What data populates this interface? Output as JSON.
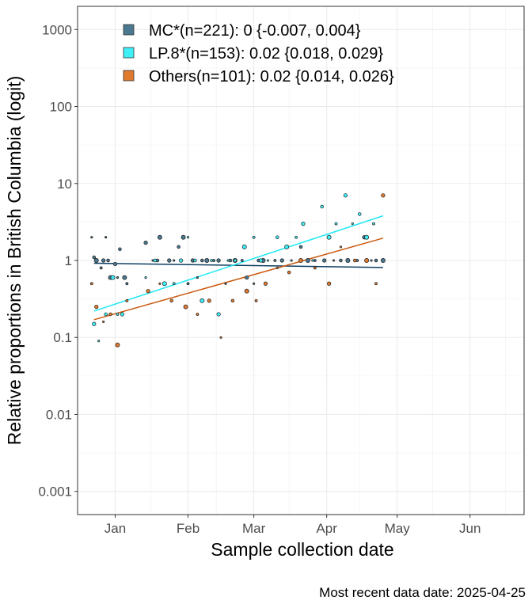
{
  "chart_data": {
    "type": "scatter",
    "title": "",
    "ylabel": "Relative proportions in British Columbia (logit)",
    "xlabel": "Sample collection date",
    "caption": "Most recent data date: 2025-04-25",
    "y_scale": "log",
    "ylim": [
      0.0005,
      2000
    ],
    "xlim": [
      "2024-12-16",
      "2025-06-24"
    ],
    "y_ticks": [
      {
        "value": 0.001,
        "label": "0.001"
      },
      {
        "value": 0.01,
        "label": "0.01"
      },
      {
        "value": 0.1,
        "label": "0.1"
      },
      {
        "value": 1,
        "label": "1"
      },
      {
        "value": 10,
        "label": "10"
      },
      {
        "value": 100,
        "label": "100"
      },
      {
        "value": 1000,
        "label": "1000"
      }
    ],
    "x_ticks": [
      {
        "date": "2025-01-01",
        "label": "Jan"
      },
      {
        "date": "2025-02-01",
        "label": "Feb"
      },
      {
        "date": "2025-03-01",
        "label": "Mar"
      },
      {
        "date": "2025-04-01",
        "label": "Apr"
      },
      {
        "date": "2025-05-01",
        "label": "May"
      },
      {
        "date": "2025-06-01",
        "label": "Jun"
      }
    ],
    "grid": true,
    "legend_position": "top-left inside",
    "series": [
      {
        "name": "MC*(n=221): 0 {-0.007, 0.004}",
        "color": "#4a7890",
        "line_color": "#0d3e62",
        "trend": [
          {
            "x": "2024-12-23",
            "y": 0.92
          },
          {
            "x": "2025-04-25",
            "y": 0.81
          }
        ],
        "points": [
          {
            "x": "2024-12-22",
            "y": 2.0
          },
          {
            "x": "2024-12-23",
            "y": 1.1
          },
          {
            "x": "2024-12-24",
            "y": 1.0
          },
          {
            "x": "2024-12-26",
            "y": 0.8
          },
          {
            "x": "2024-12-27",
            "y": 1.0
          },
          {
            "x": "2024-12-28",
            "y": 2.0
          },
          {
            "x": "2024-12-29",
            "y": 1.0
          },
          {
            "x": "2024-12-30",
            "y": 0.6
          },
          {
            "x": "2024-12-31",
            "y": 0.6
          },
          {
            "x": "2025-01-01",
            "y": 0.9
          },
          {
            "x": "2025-01-02",
            "y": 0.6
          },
          {
            "x": "2025-01-03",
            "y": 1.4
          },
          {
            "x": "2025-01-05",
            "y": 0.6
          },
          {
            "x": "2025-01-06",
            "y": 0.5
          },
          {
            "x": "2025-01-14",
            "y": 1.7
          },
          {
            "x": "2025-01-17",
            "y": 1.0
          },
          {
            "x": "2025-01-19",
            "y": 1.0
          },
          {
            "x": "2025-01-20",
            "y": 2.0
          },
          {
            "x": "2025-01-22",
            "y": 0.5
          },
          {
            "x": "2025-01-24",
            "y": 1.0
          },
          {
            "x": "2025-01-26",
            "y": 1.0
          },
          {
            "x": "2025-01-28",
            "y": 1.5
          },
          {
            "x": "2025-01-30",
            "y": 2.0
          },
          {
            "x": "2025-02-01",
            "y": 0.5
          },
          {
            "x": "2025-02-03",
            "y": 1.0
          },
          {
            "x": "2025-02-05",
            "y": 0.6
          },
          {
            "x": "2025-02-07",
            "y": 1.0
          },
          {
            "x": "2025-02-09",
            "y": 1.0
          },
          {
            "x": "2025-02-12",
            "y": 1.0
          },
          {
            "x": "2025-02-14",
            "y": 1.0
          },
          {
            "x": "2025-02-17",
            "y": 0.5
          },
          {
            "x": "2025-02-19",
            "y": 1.0
          },
          {
            "x": "2025-02-21",
            "y": 1.0
          },
          {
            "x": "2025-02-24",
            "y": 1.0
          },
          {
            "x": "2025-02-26",
            "y": 0.6
          },
          {
            "x": "2025-03-01",
            "y": 0.5
          },
          {
            "x": "2025-03-03",
            "y": 1.0
          },
          {
            "x": "2025-03-05",
            "y": 1.0
          },
          {
            "x": "2025-03-10",
            "y": 1.0
          },
          {
            "x": "2025-03-13",
            "y": 1.0
          },
          {
            "x": "2025-03-17",
            "y": 1.0
          },
          {
            "x": "2025-03-21",
            "y": 1.5
          },
          {
            "x": "2025-03-24",
            "y": 1.0
          },
          {
            "x": "2025-03-27",
            "y": 1.0
          },
          {
            "x": "2025-03-31",
            "y": 1.0
          },
          {
            "x": "2025-04-04",
            "y": 1.0
          },
          {
            "x": "2025-04-07",
            "y": 1.0
          },
          {
            "x": "2025-04-10",
            "y": 1.0
          },
          {
            "x": "2025-04-14",
            "y": 1.0
          },
          {
            "x": "2025-04-17",
            "y": 2.0
          },
          {
            "x": "2025-04-20",
            "y": 1.0
          },
          {
            "x": "2025-04-22",
            "y": 1.0
          },
          {
            "x": "2025-04-25",
            "y": 1.0
          }
        ]
      },
      {
        "name": "LP.8*(n=153): 0.02 {0.018, 0.029}",
        "color": "#3ff0f7",
        "line_color": "#1fe7f5",
        "trend": [
          {
            "x": "2024-12-23",
            "y": 0.22
          },
          {
            "x": "2025-04-25",
            "y": 3.8
          }
        ],
        "points": [
          {
            "x": "2024-12-23",
            "y": 0.15
          },
          {
            "x": "2024-12-25",
            "y": 0.09
          },
          {
            "x": "2024-12-28",
            "y": 0.2
          },
          {
            "x": "2024-12-31",
            "y": 0.6
          },
          {
            "x": "2025-01-02",
            "y": 0.2
          },
          {
            "x": "2025-01-04",
            "y": 0.2
          },
          {
            "x": "2025-01-14",
            "y": 0.6
          },
          {
            "x": "2025-01-18",
            "y": 1.0
          },
          {
            "x": "2025-01-22",
            "y": 0.5
          },
          {
            "x": "2025-01-26",
            "y": 0.5
          },
          {
            "x": "2025-01-29",
            "y": 1.0
          },
          {
            "x": "2025-02-01",
            "y": 2.0
          },
          {
            "x": "2025-02-04",
            "y": 1.0
          },
          {
            "x": "2025-02-07",
            "y": 0.3
          },
          {
            "x": "2025-02-11",
            "y": 1.0
          },
          {
            "x": "2025-02-14",
            "y": 0.2
          },
          {
            "x": "2025-02-18",
            "y": 1.0
          },
          {
            "x": "2025-02-21",
            "y": 1.0
          },
          {
            "x": "2025-02-25",
            "y": 1.5
          },
          {
            "x": "2025-03-01",
            "y": 2.0
          },
          {
            "x": "2025-03-04",
            "y": 1.0
          },
          {
            "x": "2025-03-07",
            "y": 1.0
          },
          {
            "x": "2025-03-11",
            "y": 2.0
          },
          {
            "x": "2025-03-15",
            "y": 1.5
          },
          {
            "x": "2025-03-19",
            "y": 2.0
          },
          {
            "x": "2025-03-22",
            "y": 3.0
          },
          {
            "x": "2025-03-26",
            "y": 1.0
          },
          {
            "x": "2025-03-30",
            "y": 5.0
          },
          {
            "x": "2025-04-02",
            "y": 2.0
          },
          {
            "x": "2025-04-05",
            "y": 3.0
          },
          {
            "x": "2025-04-09",
            "y": 7.0
          },
          {
            "x": "2025-04-12",
            "y": 3.0
          },
          {
            "x": "2025-04-15",
            "y": 4.0
          },
          {
            "x": "2025-04-18",
            "y": 2.0
          },
          {
            "x": "2025-04-21",
            "y": 3.0
          }
        ]
      },
      {
        "name": "Others(n=101): 0.02 {0.014, 0.026}",
        "color": "#e07a2f",
        "line_color": "#cc5a10",
        "trend": [
          {
            "x": "2024-12-23",
            "y": 0.17
          },
          {
            "x": "2025-04-25",
            "y": 1.95
          }
        ],
        "points": [
          {
            "x": "2024-12-22",
            "y": 0.5
          },
          {
            "x": "2024-12-24",
            "y": 0.25
          },
          {
            "x": "2024-12-27",
            "y": 0.16
          },
          {
            "x": "2024-12-30",
            "y": 0.2
          },
          {
            "x": "2025-01-02",
            "y": 0.08
          },
          {
            "x": "2025-01-06",
            "y": 0.3
          },
          {
            "x": "2025-01-15",
            "y": 0.4
          },
          {
            "x": "2025-01-20",
            "y": 0.5
          },
          {
            "x": "2025-01-25",
            "y": 0.3
          },
          {
            "x": "2025-01-31",
            "y": 0.25
          },
          {
            "x": "2025-02-05",
            "y": 0.2
          },
          {
            "x": "2025-02-10",
            "y": 0.3
          },
          {
            "x": "2025-02-15",
            "y": 0.1
          },
          {
            "x": "2025-02-20",
            "y": 0.3
          },
          {
            "x": "2025-02-26",
            "y": 0.4
          },
          {
            "x": "2025-03-02",
            "y": 0.3
          },
          {
            "x": "2025-03-06",
            "y": 0.5
          },
          {
            "x": "2025-03-11",
            "y": 0.8
          },
          {
            "x": "2025-03-16",
            "y": 0.7
          },
          {
            "x": "2025-03-21",
            "y": 1.0
          },
          {
            "x": "2025-03-27",
            "y": 0.8
          },
          {
            "x": "2025-04-02",
            "y": 0.5
          },
          {
            "x": "2025-04-07",
            "y": 1.5
          },
          {
            "x": "2025-04-13",
            "y": 1.0
          },
          {
            "x": "2025-04-18",
            "y": 1.0
          },
          {
            "x": "2025-04-22",
            "y": 0.5
          },
          {
            "x": "2025-04-25",
            "y": 7.0
          }
        ]
      }
    ]
  }
}
